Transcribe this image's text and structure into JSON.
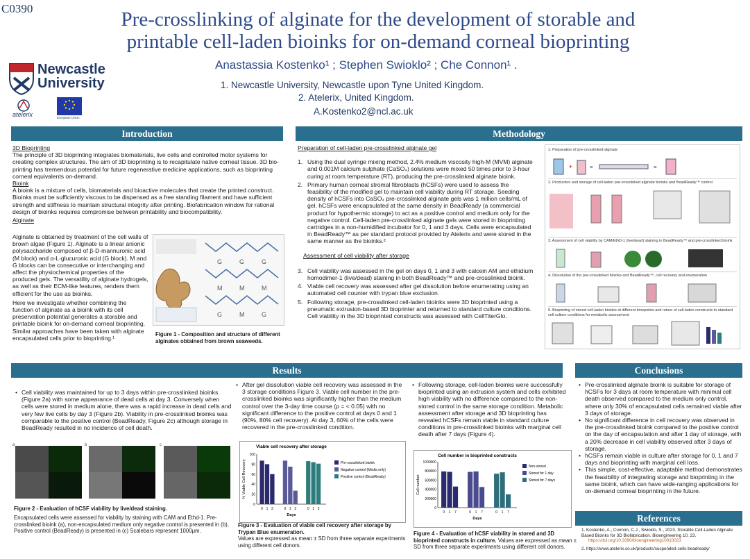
{
  "poster_code": "C0390",
  "title_line1": "Pre-crosslinking of alginate for the development of storable and",
  "title_line2": "printable cell-laden bioinks for on-demand corneal bioprinting",
  "authors": "Anastassia Kostenko¹ ; Stephen Swioklo² ; Che Connon¹ .",
  "affiliation1": "1.  Newcastle University, Newcastle upon Tyne United Kingdom.",
  "affiliation2": "2.  Atelerix, United Kingdom.",
  "email": "A.Kostenko2@ncl.ac.uk",
  "logo_ncl": "Newcastle University",
  "logo_atelerix": "atelerix",
  "logo_eu": "European Union",
  "sections": {
    "intro": "Introduction",
    "methods": "Methodology",
    "results": "Results",
    "conclusions": "Conclusions",
    "references": "References"
  },
  "intro": {
    "h1": "3D Bioprinting",
    "p1": "The principle of 3D bioprinting integrates biomaterials, live cells and controlled motor systems for creating complex structures. The aim of 3D bioprinting is to recapitulate native corneal tissue. 3D bio-printing has tremendous potential for future regenerative medicine applications, such as bioprinting corneal equivalents on-demand.",
    "h2": "Bioink",
    "p2": "A bioink is a mixture of cells, biomaterials and bioactive molecules that create the printed construct. Bioinks must be sufficiently viscous to be dispensed as a free standing filament and have sufficient strength and stiffness to maintain structural integrity after printing. Biofabrication window for rational design of bioinks requires compromise between printability and biocompatibility.",
    "h3": "Alginate",
    "p3": "Alginate is obtained by treatment of the cell walls of brown algae (Figure 1). Alginate is a linear anionic polysaccharide composed of β-D-mannuronic acid (M block) and α-L-glucuronic acid (G block). M and G blocks can be consecutive or interchanging and affect the physiochemical properties of the produced gels. The versatility of alginate hydrogels, as well as their ECM-like features, renders them efficient for the use as bioinks.",
    "p4": "Here we investigate whether combining the function of alginate as a bioink with its cell preservation potential generates a storable and printable bioink for on-demand corneal bioprinting. Similar approaches have been taken with alginate encapsulated cells prior to bioprinting.¹",
    "fig1_caption": "Figure 1 - Composition and structure of different alginates obtained from brown seaweeds."
  },
  "methods": {
    "h1": "Preparation of cell-laden pre-crosslinked alginate gel",
    "m1": "Using the dual syringe mixing method, 2.4% medium viscosity high-M (MVM) alginate and 0.001M calcium sulphate (CaSO₄) solutions were mixed 50 times prior to 3-hour curing at room temperature (RT), producing the pre-crosslinked alginate bioink.",
    "m2": "Primary human corneal stromal fibroblasts (hCSFs) were used to assess the feasibility of the modified gel to maintain cell viability during RT storage. Seeding density of hCSFs into CaSO₄ pre-crosslinked alginate gels was 1 million cells/mL of gel. hCSFs were encapsulated at the same density in BeadReady (a commercial product for hypothermic storage) to act as a positive control and medium only for the negative control. Cell-laden pre-crosslinked alginate gels were stored in bioprinting cartridges in a non-humidified incubator for 0, 1 and 3 days. Cells were encapsulated in BeadReady™ as per standard protocol provided by Atelerix and were stored in the same manner as the bioinks.²",
    "h2": "Assessment of cell viability after storage",
    "m3": "Cell viability was assessed in the gel on days 0, 1 and 3 with calcein AM and ethidium homodimer-1 (live/dead) staining in both BeadReady™ and pre-crosslinked bioink.",
    "m4": "Viable cell recovery was assessed after gel dissolution before enumerating using an automated cell counter with trypan blue exclusion.",
    "m5": "Following storage, pre-crosslinked cell-laden bioinks were 3D  bioprinted using a pneumatic extrusion-based 3D bioprinter and returned to standard culture conditions. Cell viability in the 3D bioprinted  constructs was assessed with CellTiterGlo.",
    "n1": "1.",
    "n2": "2.",
    "n3": "3.",
    "n4": "4.",
    "n5": "5.",
    "wf1": "1.  Preparation of pre-crosslinked alginate",
    "wf2": "2. Production and storage of cell-laden pre-crosslinked alginate bioinks and BeadReady™ control",
    "wf3": "3. Assessment of cell viability by CAM/EthD-1 (live/dead) staining in BeadReady™ and pre-crosslinked bioink",
    "wf4": "4. Dissolution of the pre-crosslinked bioinks and BeadReady™, cell recovery and enumeration",
    "wf5": "5. Bioprinting of stored cell-laden bioinks at different timepoints and return of cell-laden constructs to standard cell culture conditions for metabolic assessment"
  },
  "results": {
    "c1": "Cell viability was maintained for up to 3 days within pre-crosslinked bioinks (Figure 2a) with some appearance of dead cells at day 3. Conversely when cells were stored in medium alone, there was a rapid increase in dead cells and very few live cells by day 3 (Figure 2b). Viability in pre-crosslinked bioinks was comparable to the positive control (BeadReady, Figure 2c) although storage in BeadReady resulted in no incidence of cell death.",
    "c2": "After gel dissolution viable cell recovery was assessed in the 3 storage conditions Figure 3. Viable cell number in the pre-crosslinked bioinks was significantly higher than the medium control over the 3-day time course (p = < 0.05) with no significant difference to the positive control at days 0 and 1 (90%, 80% cell recovery). At day 3, 60% of the cells were recovered in the pre-crosslinked condition.",
    "c3": "Following storage, cell-laden bioinks were successfully bioprinted using an extrusion system and cells exhibited high viability with no difference compared to the non-stored control in the same storage condition. Metabolic assessment after storage and 3D bioprinting has revealed hCSFs remain viable in standard culture conditions in pre-crosslinked bioinks with marginal cell death after 7 days (Figure 4).",
    "fig2_caption": "Figure 2 - Evaluation of hCSF viability by live/dead staining.",
    "fig2_note": "Encapsulated cells were assessed for viability by staining with CAM and Ethd-1. Pre-crosslinked bioink (a), non-encapsulated medium only negative control is presented in (b), Positive control (BeadReady) is presented in (c)  Scalebars represent 1000μm.",
    "fig3_caption": "Figure 3 - Evaluation of viable cell recovery after storage by Trypan Blue enumeration.",
    "fig3_note": "Values are expressed as mean ± SD from three separate experiments using different cell donors.",
    "fig4_caption": "Figure 4 - Evaluation of hCSF viability in stored and 3D bioprinted constructs in culture.",
    "fig4_note": "Values are expressed as mean ± SD from three separate experiments using different cell donors.",
    "panel_a": "a",
    "panel_b": "b",
    "panel_c": "c"
  },
  "conclusions": {
    "c1": "Pre-crosslinked alginate bioink is suitable for storage of hCSFs for 3 days at room temperature with minimal cell death observed compared to the medium only control, where only 30% of encapsulated cells remained viable after 3 days of storage.",
    "c2": "No significant difference in cell recovery was observed in the pre-crosslinked bioink compared to the positive control on the day of encapsulation and after 1 day of storage, with a 20% decrease in cell viability observed after 3 days of storage.",
    "c3": "hCSFs remain viable in culture after storage for 0, 1 and 7 days and bioprinting with marginal cell loss.",
    "c4": "This simple, cost-effective, adaptable method demonstrates the feasibility of integrating storage and bioprinting in the same bioink, which can have wide-ranging applications for on-demand corneal bioprinting in the future."
  },
  "references": {
    "r1": "1.   Kostenko, A., Connon, C.J., Swioklo, S., 2023. Storable Cell-Laden Alginate Based Bioinks for 3D Biofabrication. Bioengineering 10, 23.",
    "r1_link": "https://doi.org/10.3390/bioengineering10010023",
    "r2": "2.   https://www.atelerix.co.uk/products/suspended-cells-beadready/"
  },
  "chart_data": [
    {
      "type": "bar",
      "title": "Viable cell recovery after storage",
      "xlabel": "Days",
      "ylabel": "% Viable Cell Recovery",
      "categories": [
        "0",
        "1",
        "3"
      ],
      "ylim": [
        0,
        100
      ],
      "yticks": [
        "0",
        "20",
        "40",
        "60",
        "80",
        "100"
      ],
      "series": [
        {
          "name": "Pre-crosslinked bioink",
          "color": "#2b2a6e",
          "values": [
            87,
            80,
            60
          ]
        },
        {
          "name": "Negative control (Media only)",
          "color": "#5a5a9a",
          "values": [
            87,
            75,
            27
          ]
        },
        {
          "name": "Positive control (BeadReady)",
          "color": "#2e7d7d",
          "values": [
            86,
            84,
            81
          ]
        }
      ]
    },
    {
      "type": "bar",
      "title": "Cell number in bioprinted constructs",
      "xlabel": "Days",
      "ylabel": "Cell number",
      "categories": [
        "0",
        "1",
        "7"
      ],
      "ylim": [
        0,
        1000000
      ],
      "yticks": [
        "0",
        "200000",
        "400000",
        "600000",
        "800000",
        "1000000"
      ],
      "series": [
        {
          "name": "Non-stored",
          "color": "#2b2a6e",
          "values": [
            790000,
            780000,
            460000
          ]
        },
        {
          "name": "Stored for 1 day",
          "color": "#4a4a8e",
          "values": [
            780000,
            790000,
            450000
          ]
        },
        {
          "name": "Stored for 7 days",
          "color": "#2e6e7a",
          "values": [
            740000,
            770000,
            290000
          ]
        }
      ]
    }
  ]
}
